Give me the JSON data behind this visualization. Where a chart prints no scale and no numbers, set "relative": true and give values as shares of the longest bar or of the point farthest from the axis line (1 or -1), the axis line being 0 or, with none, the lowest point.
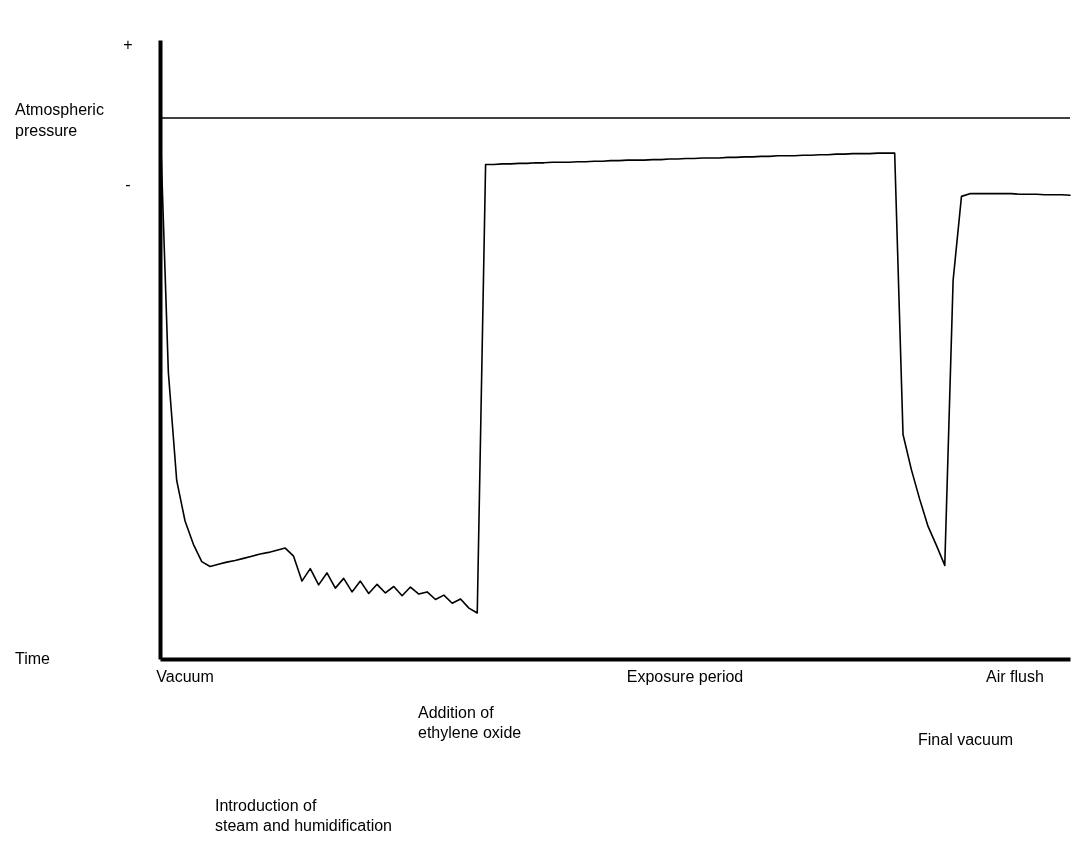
{
  "chart_data": {
    "type": "line",
    "relative": true,
    "categories": [
      null,
      null,
      null,
      null,
      null,
      null,
      null,
      null,
      null,
      null,
      null,
      null,
      null,
      null,
      null,
      null,
      null,
      null,
      null,
      null,
      null,
      null,
      null,
      null,
      null,
      null,
      null,
      null,
      null,
      null,
      null,
      null,
      null,
      null,
      null,
      null,
      null,
      null,
      null,
      null,
      null,
      null,
      null,
      null,
      null,
      null,
      null,
      null,
      null,
      null,
      null,
      null,
      null,
      null,
      null,
      null,
      null,
      null,
      null,
      null,
      null,
      null,
      null,
      null,
      null,
      null,
      null,
      null,
      null,
      null,
      null,
      null,
      null,
      null,
      null,
      null,
      null,
      null,
      null,
      null,
      null,
      null,
      null,
      null,
      null,
      null,
      null,
      null,
      null,
      null,
      null,
      null,
      null,
      null,
      null,
      null,
      null,
      null,
      null,
      null,
      null,
      null,
      null,
      null,
      null,
      null,
      null,
      null,
      null,
      null
    ],
    "series": [
      {
        "color": "#000000",
        "values": [
          1.0,
          0.53,
          0.33,
          0.255,
          0.212,
          0.18,
          0.171,
          0.175,
          0.179,
          0.182,
          0.186,
          0.19,
          0.194,
          0.197,
          0.201,
          0.205,
          0.19,
          0.144,
          0.167,
          0.137,
          0.159,
          0.131,
          0.149,
          0.124,
          0.144,
          0.121,
          0.138,
          0.122,
          0.134,
          0.117,
          0.133,
          0.12,
          0.124,
          0.11,
          0.118,
          0.103,
          0.111,
          0.094,
          0.085,
          0.914,
          0.914,
          0.915,
          0.915,
          0.916,
          0.916,
          0.917,
          0.917,
          0.918,
          0.918,
          0.918,
          0.919,
          0.919,
          0.92,
          0.92,
          0.921,
          0.921,
          0.922,
          0.922,
          0.922,
          0.923,
          0.923,
          0.924,
          0.924,
          0.925,
          0.925,
          0.926,
          0.926,
          0.926,
          0.927,
          0.927,
          0.928,
          0.928,
          0.929,
          0.929,
          0.93,
          0.93,
          0.93,
          0.931,
          0.931,
          0.932,
          0.932,
          0.933,
          0.933,
          0.934,
          0.934,
          0.934,
          0.935,
          0.935,
          0.935,
          0.415,
          0.35,
          0.295,
          0.245,
          0.21,
          0.173,
          0.7,
          0.855,
          0.86,
          0.86,
          0.86,
          0.86,
          0.86,
          0.86,
          0.859,
          0.859,
          0.859,
          0.858,
          0.858,
          0.858,
          0.857
        ]
      }
    ],
    "ref_lines": [
      {
        "axis": "y",
        "value": 1,
        "label": "Atmospheric pressure",
        "color": "#000000"
      }
    ],
    "annotations": [
      "+",
      "-",
      "Vacuum",
      "Introduction of\nsteam and humidification",
      "Addition of\nethylene oxide",
      "Exposure period",
      "Final vacuum",
      "Air flush",
      "Time"
    ]
  }
}
